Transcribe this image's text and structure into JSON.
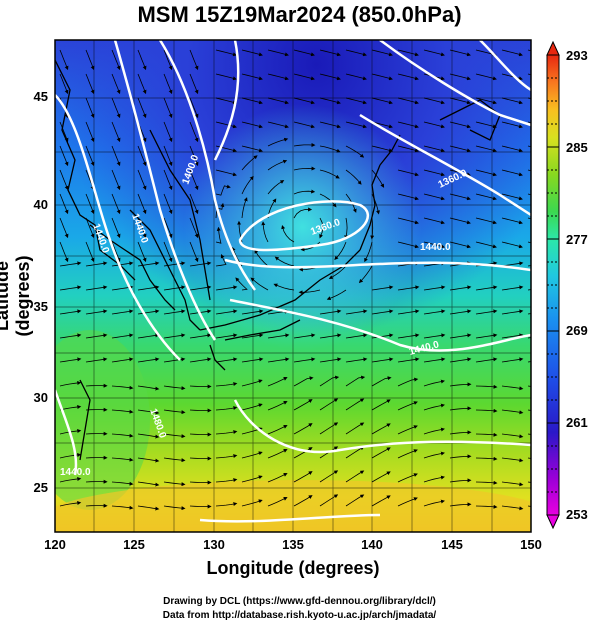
{
  "title": "MSM 15Z19Mar2024 (850.0hPa)",
  "axes": {
    "xlabel": "Longitude (degrees)",
    "ylabel": "Latitude  (degrees)",
    "x_ticks": [
      "120",
      "125",
      "130",
      "135",
      "140",
      "145",
      "150"
    ],
    "y_ticks": [
      "25",
      "30",
      "35",
      "40",
      "45"
    ]
  },
  "colorbar": {
    "labels": [
      "293",
      "285",
      "277",
      "269",
      "261",
      "253"
    ],
    "min": 253,
    "max": 293,
    "colors": [
      "#e800e0",
      "#9a00d8",
      "#2a18c8",
      "#1e50e8",
      "#1a8ef0",
      "#20c8e0",
      "#2ce8a8",
      "#3cd850",
      "#88d820",
      "#d8e020",
      "#f8c020",
      "#f87820",
      "#e82810"
    ]
  },
  "contours": {
    "labels": [
      "1440.0",
      "1440.0",
      "1400.0",
      "1360.0",
      "1360.0",
      "1440.0",
      "1440.0",
      "1480.0",
      "1440.0"
    ]
  },
  "credits": {
    "line1": "Drawing by DCL (https://www.gfd-dennou.org/library/dcl/)",
    "line2": "Data from http://database.rish.kyoto-u.ac.jp/arch/jmadata/"
  }
}
